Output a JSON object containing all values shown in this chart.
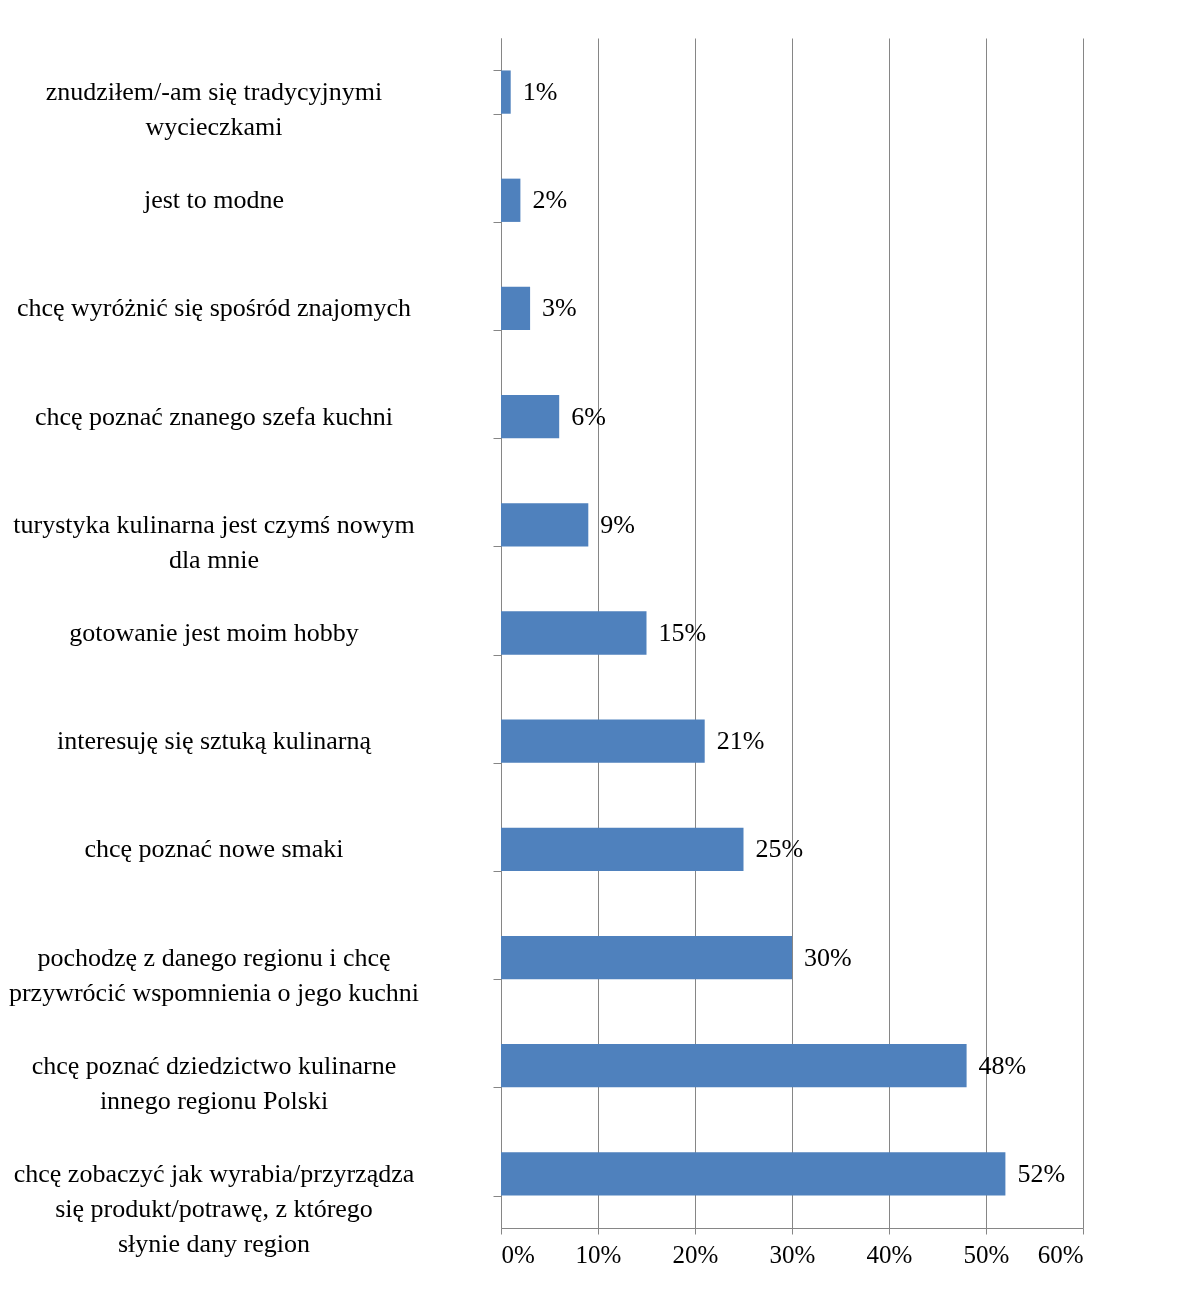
{
  "chart_data": {
    "type": "bar",
    "orientation": "horizontal",
    "categories": [
      "znudziłem/-am się tradycyjnymi wycieczkami",
      "jest to modne",
      "chcę wyróżnić się spośród znajomych",
      "chcę poznać znanego szefa kuchni",
      "turystyka kulinarna jest czymś nowym dla mnie",
      "gotowanie jest moim hobby",
      "interesuję się sztuką kulinarną",
      "chcę poznać nowe smaki",
      "pochodzę z danego regionu i chcę przywrócić wspomnienia o jego kuchni",
      "chcę poznać dziedzictwo kulinarne innego regionu Polski",
      "chcę zobaczyć jak wyrabia/przyrządza się produkt/potrawę, z którego słynie dany region"
    ],
    "values": [
      1,
      2,
      3,
      6,
      9,
      15,
      21,
      25,
      30,
      48,
      52
    ],
    "value_labels": [
      "1%",
      "2%",
      "3%",
      "6%",
      "9%",
      "15%",
      "21%",
      "25%",
      "30%",
      "48%",
      "52%"
    ],
    "color": "#4f81bd",
    "xlim": [
      0,
      60
    ],
    "xticks": [
      {
        "value": 0,
        "label": "0%"
      },
      {
        "value": 10,
        "label": "10%"
      },
      {
        "value": 20,
        "label": "20%"
      },
      {
        "value": 30,
        "label": "30%"
      },
      {
        "value": 40,
        "label": "40%"
      },
      {
        "value": 50,
        "label": "50%"
      },
      {
        "value": 60,
        "label": "60%"
      }
    ],
    "grid": "x"
  }
}
